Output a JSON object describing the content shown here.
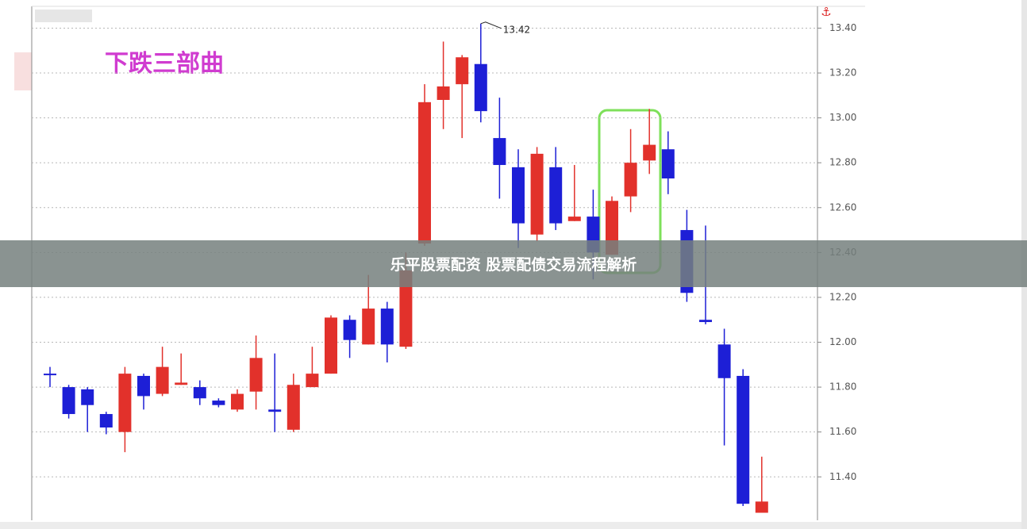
{
  "chart_data": {
    "type": "candlestick",
    "title": "下跌三部曲",
    "open": [
      11.86,
      11.8,
      11.79,
      11.68,
      11.6,
      11.85,
      11.77,
      11.81,
      11.8,
      11.74,
      11.7,
      11.78,
      11.7,
      11.61,
      11.8,
      11.86,
      12.1,
      11.99,
      12.15,
      11.98,
      12.44,
      13.08,
      13.15,
      13.24,
      12.91,
      12.78,
      12.48,
      12.78,
      12.54,
      12.56,
      12.39,
      12.65,
      12.81,
      12.86,
      12.5,
      12.1,
      11.99,
      11.85,
      11.24
    ],
    "high": [
      11.89,
      11.81,
      11.8,
      11.69,
      11.89,
      11.86,
      11.98,
      11.95,
      11.83,
      11.75,
      11.79,
      12.03,
      11.95,
      11.86,
      11.98,
      12.12,
      12.12,
      12.3,
      12.18,
      12.4,
      13.15,
      13.34,
      13.28,
      13.42,
      13.09,
      12.86,
      12.87,
      12.87,
      12.79,
      12.68,
      12.65,
      12.95,
      13.04,
      12.94,
      12.59,
      12.52,
      12.06,
      11.88,
      11.49
    ],
    "low": [
      11.8,
      11.66,
      11.6,
      11.59,
      11.51,
      11.7,
      11.76,
      11.81,
      11.72,
      11.71,
      11.69,
      11.7,
      11.6,
      11.6,
      11.8,
      11.86,
      11.93,
      11.99,
      11.91,
      11.97,
      12.43,
      12.95,
      12.91,
      12.98,
      12.64,
      12.42,
      12.45,
      12.5,
      12.54,
      12.28,
      12.39,
      12.58,
      12.75,
      12.66,
      12.18,
      12.08,
      11.54,
      11.27,
      11.24
    ],
    "close": [
      11.86,
      11.68,
      11.72,
      11.62,
      11.86,
      11.76,
      11.89,
      11.82,
      11.75,
      11.72,
      11.77,
      11.93,
      11.69,
      11.81,
      11.86,
      12.11,
      12.01,
      12.15,
      11.99,
      12.32,
      13.07,
      13.14,
      13.27,
      13.03,
      12.79,
      12.53,
      12.84,
      12.53,
      12.56,
      12.4,
      12.63,
      12.8,
      12.88,
      12.73,
      12.22,
      12.09,
      11.84,
      11.28,
      11.29
    ],
    "up_color": "#e2312b",
    "down_color": "#1d1fd6",
    "annotations": [
      {
        "label": "13.42",
        "value": 13.42
      }
    ],
    "ylim": [
      11.21,
      13.49
    ],
    "yticks": [
      {
        "value": 11.4,
        "label": "11.40"
      },
      {
        "value": 11.6,
        "label": "11.60"
      },
      {
        "value": 11.8,
        "label": "11.80"
      },
      {
        "value": 12.0,
        "label": "12.00"
      },
      {
        "value": 12.2,
        "label": "12.20"
      },
      {
        "value": 12.4,
        "label": "12.40"
      },
      {
        "value": 12.6,
        "label": "12.60"
      },
      {
        "value": 12.8,
        "label": "12.80"
      },
      {
        "value": 13.0,
        "label": "13.00"
      },
      {
        "value": 13.2,
        "label": "13.20"
      },
      {
        "value": 13.4,
        "label": "13.40"
      }
    ],
    "grid": true
  },
  "banner": {
    "title": "乐平股票配资 股票配债交易流程解析"
  }
}
